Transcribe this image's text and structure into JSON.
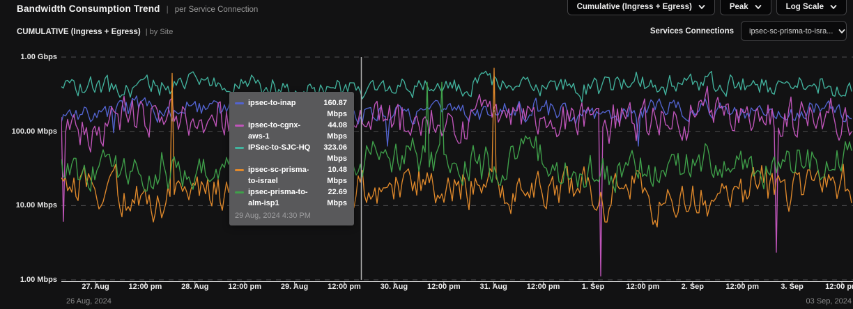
{
  "header": {
    "title": "Bandwidth Consumption Trend",
    "separator": "|",
    "subtitle": "per Service Connection",
    "controls": [
      {
        "label": "Cumulative (Ingress + Egress)"
      },
      {
        "label": "Peak"
      },
      {
        "label": "Log Scale"
      }
    ]
  },
  "subheader": {
    "view_label": "CUMULATIVE (Ingress + Egress)",
    "view_suffix": "| by Site",
    "services_connections_label": "Services Connections",
    "services_connections_value": "ipsec-sc-prisma-to-isra..."
  },
  "chart_data": {
    "type": "line",
    "scale": "log",
    "grid": "dashed-horizontal",
    "y_axis": {
      "tick_labels": [
        "1.00 Gbps",
        "100.00 Mbps",
        "10.00 Mbps",
        "1.00 Mbps"
      ],
      "range_mbps": [
        1,
        1000
      ]
    },
    "x_axis": {
      "tick_labels": [
        "27. Aug",
        "12:00 pm",
        "28. Aug",
        "12:00 pm",
        "29. Aug",
        "12:00 pm",
        "30. Aug",
        "12:00 pm",
        "31. Aug",
        "12:00 pm",
        "1. Sep",
        "12:00 pm",
        "2. Sep",
        "12:00 pm",
        "3. Sep",
        "12:00 pm"
      ],
      "range_start": "26 Aug, 2024",
      "range_end": "03 Sep, 2024"
    },
    "series": [
      {
        "name": "ipsec-to-inap",
        "color": "#5263cf",
        "tooltip_value": "160.87",
        "unit": "Mbps",
        "approx_range_mbps": [
          70,
          450
        ],
        "gen": {
          "seed": 7,
          "base": 2.25,
          "amp": 0.2,
          "spike_p": 0.01,
          "spike_amp": 0.35,
          "spike_dir": -1,
          "min": 1.8,
          "max": 2.62
        }
      },
      {
        "name": "ipsec-to-cgnx-aws-1",
        "color": "#c055ba",
        "tooltip_value": "44.08",
        "unit": "Mbps",
        "approx_range_mbps": [
          1.5,
          650
        ],
        "gen": {
          "seed": 13,
          "base": 2.18,
          "amp": 0.4,
          "spike_p": 0.007,
          "spike_amp": 1.7,
          "spike_dir": -1,
          "min": 0.05,
          "max": 2.83
        }
      },
      {
        "name": "IPSec-to-SJC-HQ",
        "color": "#42b39e",
        "tooltip_value": "323.06",
        "unit": "Mbps",
        "approx_range_mbps": [
          150,
          950
        ],
        "gen": {
          "seed": 21,
          "base": 2.62,
          "amp": 0.21,
          "spike_p": 0.006,
          "spike_amp": 0.3,
          "spike_dir": 1,
          "min": 2.18,
          "max": 2.97
        }
      },
      {
        "name": "ipsec-sc-prisma-to-israel",
        "color": "#e0892b",
        "tooltip_value": "10.48",
        "unit": "Mbps",
        "approx_range_mbps": [
          1.2,
          700
        ],
        "gen": {
          "seed": 5,
          "base": 1.25,
          "amp": 0.44,
          "spike_p": 0.008,
          "spike_amp": 1.5,
          "spike_dir": 1,
          "min": 0.05,
          "max": 2.85
        }
      },
      {
        "name": "ipsec-prisma-to-alm-isp1",
        "color": "#3fa04a",
        "tooltip_value": "22.69",
        "unit": "Mbps",
        "approx_range_mbps": [
          8,
          450
        ],
        "gen": {
          "seed": 17,
          "base": 1.58,
          "amp": 0.4,
          "spike_p": 0.01,
          "spike_amp": 0.95,
          "spike_dir": 1,
          "min": 0.85,
          "max": 2.66
        }
      }
    ],
    "tooltip": {
      "timestamp": "29 Aug, 2024 4:30 PM"
    }
  }
}
